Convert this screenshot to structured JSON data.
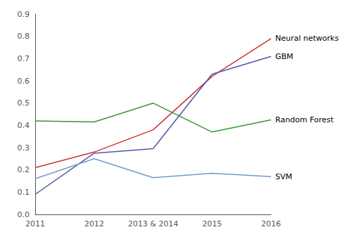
{
  "chart_data": {
    "type": "line",
    "categories": [
      "2011",
      "2012",
      "2013 & 2014",
      "2015",
      "2016"
    ],
    "series": [
      {
        "name": "Neural networks",
        "color": "#cc3333",
        "values": [
          0.21,
          0.28,
          0.38,
          0.62,
          0.79
        ]
      },
      {
        "name": "Random Forest",
        "color": "#339933",
        "values": [
          0.42,
          0.415,
          0.5,
          0.37,
          0.425
        ]
      },
      {
        "name": "GBM",
        "color": "#5555aa",
        "values": [
          0.09,
          0.275,
          0.295,
          0.63,
          0.71
        ]
      },
      {
        "name": "SVM",
        "color": "#7799cc",
        "values": [
          0.16,
          0.25,
          0.165,
          0.185,
          0.17
        ]
      }
    ],
    "ylim": [
      0.0,
      0.9
    ],
    "yticks": [
      {
        "value": 0.0,
        "label": "0.0"
      },
      0.1,
      0.2,
      0.3,
      0.4,
      0.5,
      0.6,
      0.7,
      0.8,
      0.9
    ],
    "grid": false
  }
}
